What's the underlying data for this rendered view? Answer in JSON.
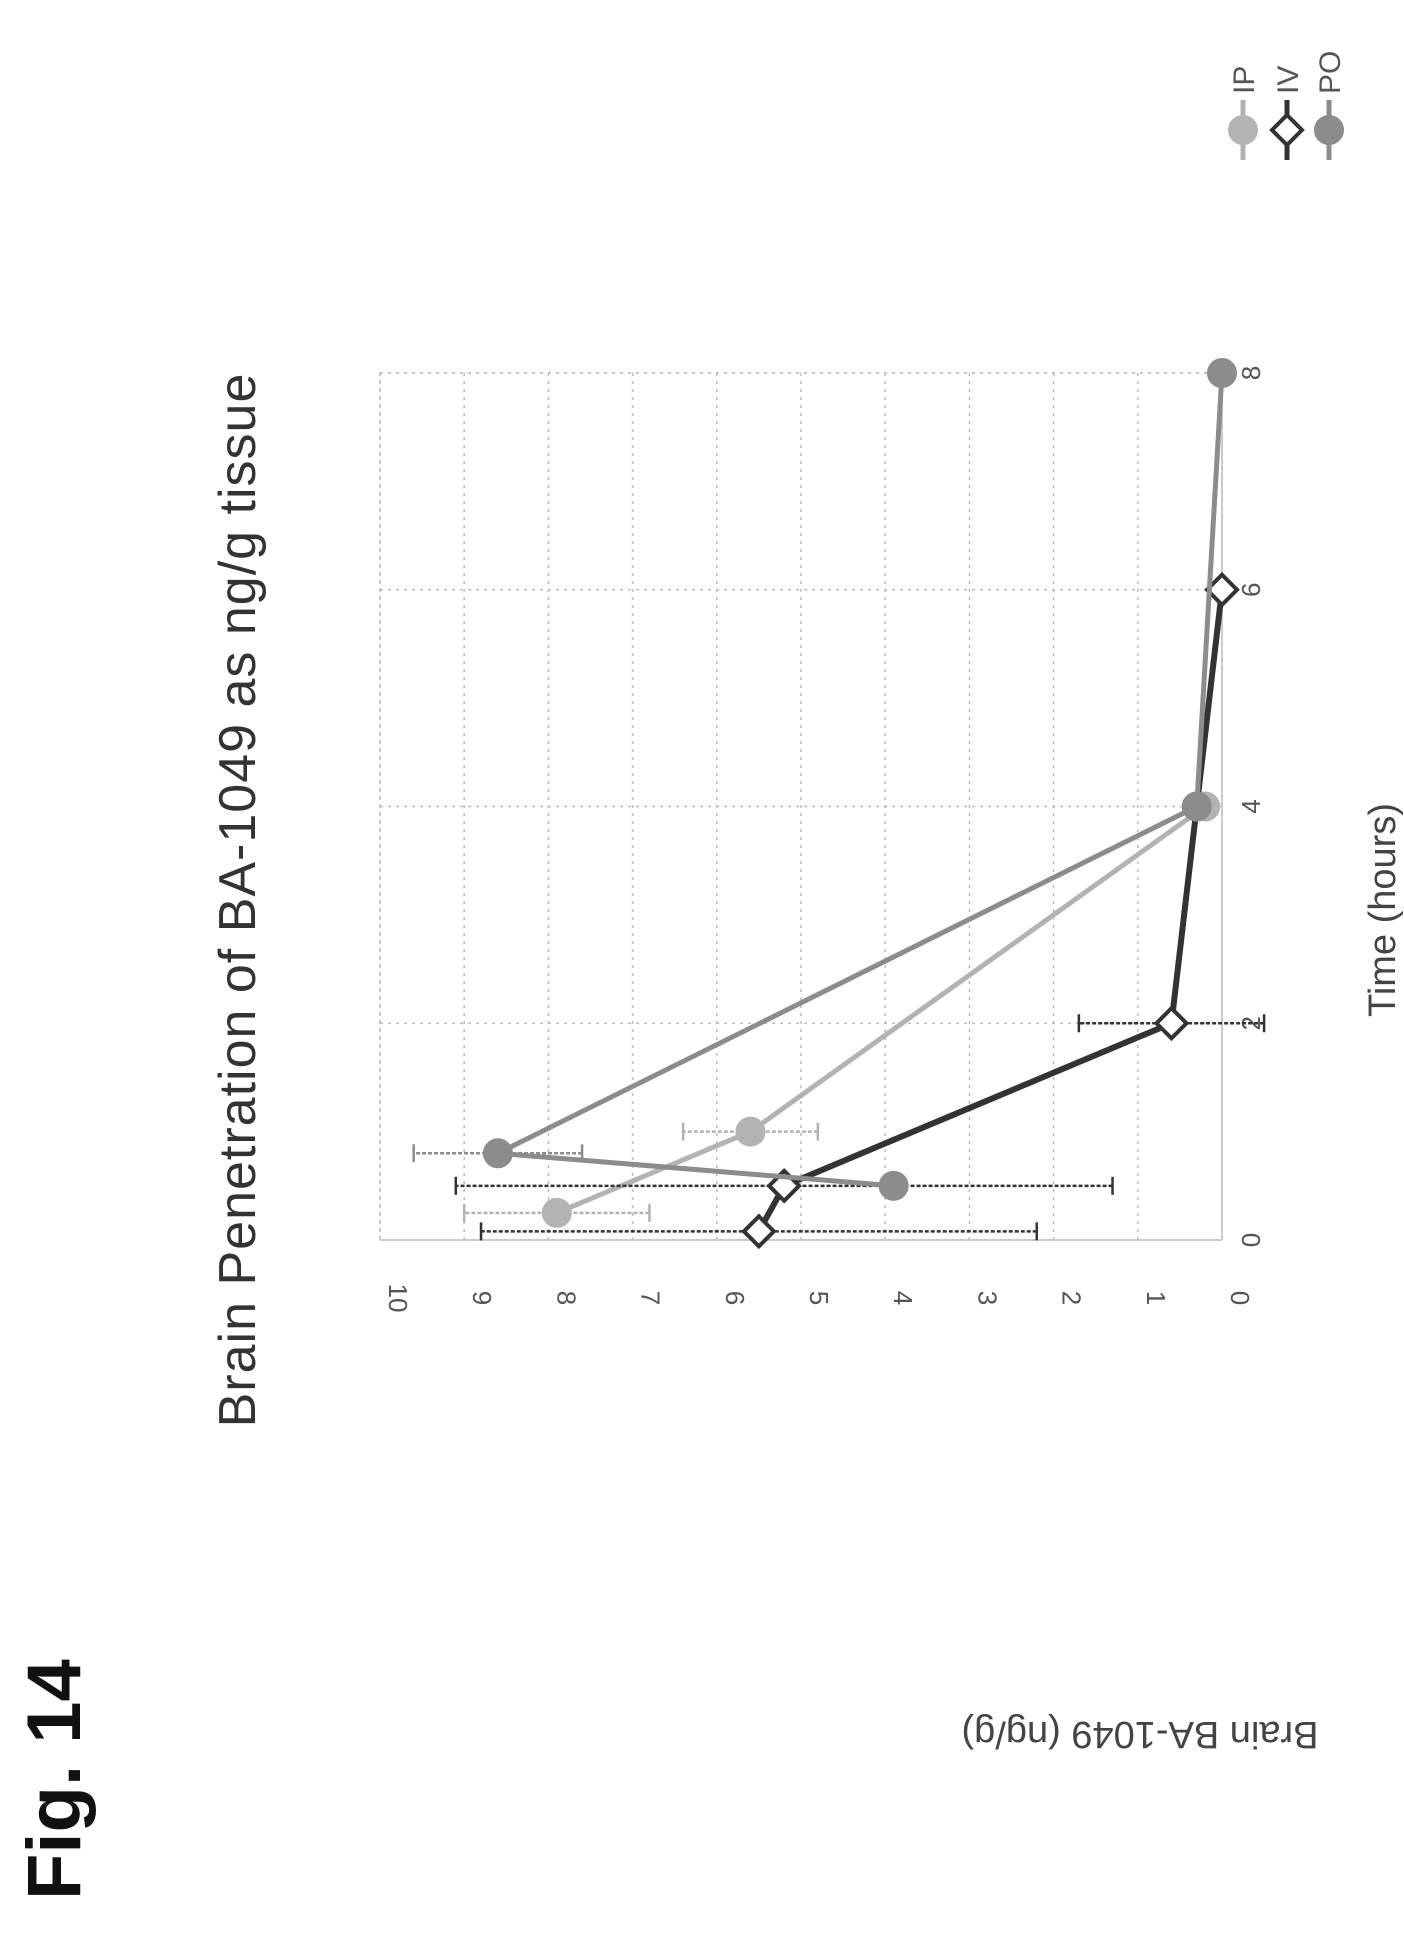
{
  "figure_label": "Fig. 14",
  "chart_data": {
    "type": "line",
    "title": "Brain Penetration of BA-1049 as ng/g tissue",
    "xlabel": "Time (hours)",
    "ylabel": "Brain BA-1049 (ng/g)",
    "xlim": [
      0,
      8
    ],
    "ylim": [
      0,
      10
    ],
    "xticks": [
      "0",
      "2",
      "4",
      "6",
      "8"
    ],
    "yticks": [
      "0",
      "1",
      "2",
      "3",
      "4",
      "5",
      "6",
      "7",
      "8",
      "9",
      "10"
    ],
    "grid": true,
    "legend_position": "right",
    "series": [
      {
        "name": "IP",
        "color": "#b3b3b3",
        "marker": "circle",
        "points": [
          {
            "x": 0.25,
            "y": 7.9,
            "err": 1.1
          },
          {
            "x": 1.0,
            "y": 5.6,
            "err": 0.8
          },
          {
            "x": 4.0,
            "y": 0.2,
            "err": 0
          }
        ]
      },
      {
        "name": "IV",
        "color": "#333333",
        "marker": "diamond",
        "points": [
          {
            "x": 0.08,
            "y": 5.5,
            "err": 3.3
          },
          {
            "x": 0.5,
            "y": 5.2,
            "err": 3.9
          },
          {
            "x": 2.0,
            "y": 0.6,
            "err": 1.1
          },
          {
            "x": 6.0,
            "y": 0.0,
            "err": 0
          }
        ]
      },
      {
        "name": "PO",
        "color": "#8c8c8c",
        "marker": "circle",
        "points": [
          {
            "x": 0.5,
            "y": 3.9,
            "err": 0
          },
          {
            "x": 0.8,
            "y": 8.6,
            "err": 1.0
          },
          {
            "x": 4.0,
            "y": 0.3,
            "err": 0
          },
          {
            "x": 8.0,
            "y": 0.0,
            "err": 0
          }
        ]
      }
    ]
  }
}
